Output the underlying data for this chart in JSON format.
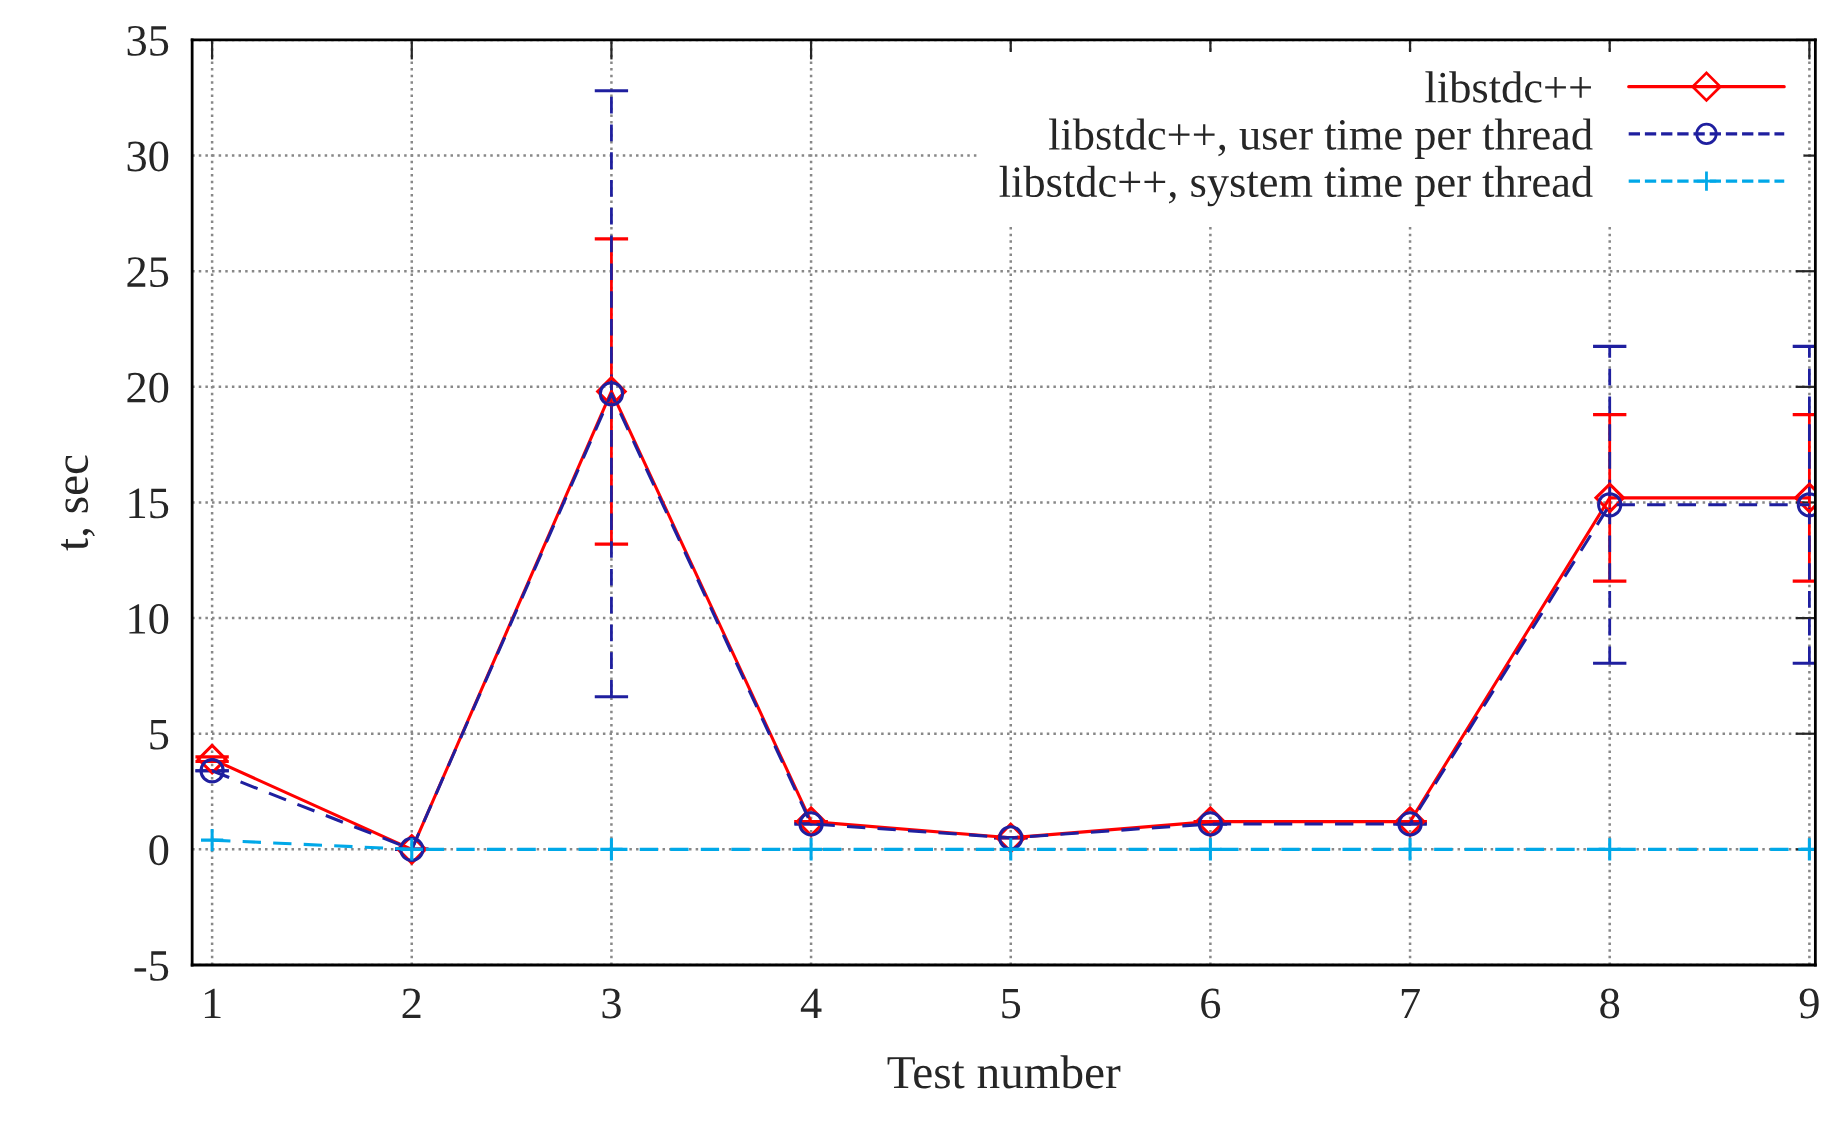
{
  "chart_data": {
    "type": "line",
    "xlabel": "Test number",
    "ylabel": "t, sec",
    "x": [
      1,
      2,
      3,
      4,
      5,
      6,
      7,
      8,
      9
    ],
    "xlim": [
      0.9,
      9.03
    ],
    "xticks": [
      1,
      2,
      3,
      4,
      5,
      6,
      7,
      8,
      9
    ],
    "ylim": [
      -5,
      35
    ],
    "yticks": [
      -5,
      0,
      5,
      10,
      15,
      20,
      25,
      30,
      35
    ],
    "grid": true,
    "legend": "top right",
    "series": [
      {
        "name": "libstdc++",
        "color": "#ff0000",
        "marker": "diamond",
        "line_style": "solid",
        "values": [
          3.9,
          0,
          19.8,
          1.2,
          0.5,
          1.2,
          1.2,
          15.2,
          15.2
        ],
        "errors": [
          0.1,
          null,
          6.6,
          null,
          null,
          null,
          null,
          3.6,
          3.6
        ]
      },
      {
        "name": "libstdc++, user time per thread",
        "color": "#1f1f9f",
        "marker": "circle",
        "line_style": "dashed",
        "values": [
          3.4,
          0,
          19.7,
          1.1,
          0.5,
          1.1,
          1.1,
          14.9,
          14.9
        ],
        "errors": [
          null,
          null,
          13.1,
          null,
          null,
          null,
          null,
          6.85,
          6.85
        ]
      },
      {
        "name": "libstdc++, system time per thread",
        "color": "#00a8e8",
        "marker": "cross",
        "line_style": "dashed",
        "values": [
          0.4,
          0,
          0,
          0,
          0,
          0,
          0,
          0,
          0
        ]
      }
    ]
  }
}
